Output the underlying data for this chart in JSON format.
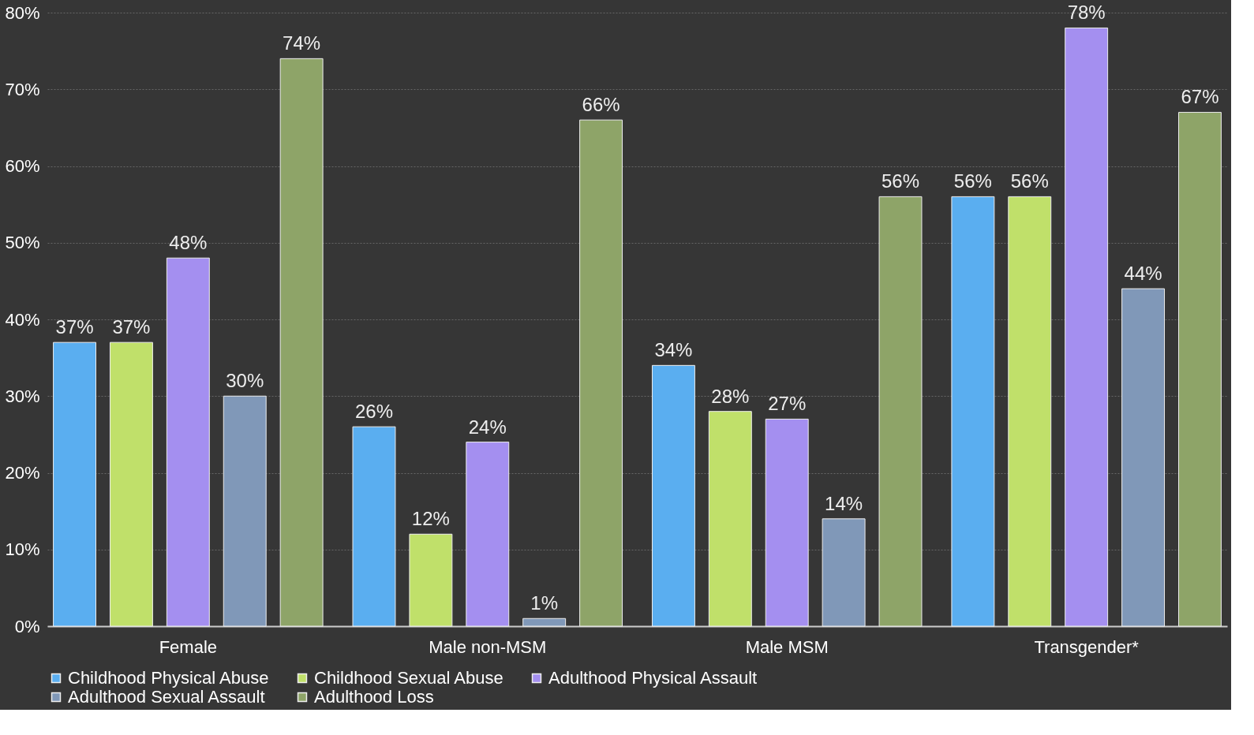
{
  "chart_data": {
    "type": "bar",
    "categories": [
      "Female",
      "Male non-MSM",
      "Male MSM",
      "Transgender*"
    ],
    "series": [
      {
        "name": "Childhood Physical Abuse",
        "color": "#5aaef0",
        "values": [
          37,
          26,
          34,
          56
        ],
        "value_labels": [
          "37%",
          "26%",
          "34%",
          "56%"
        ]
      },
      {
        "name": "Childhood Sexual Abuse",
        "color": "#c0e06a",
        "values": [
          37,
          12,
          28,
          56
        ],
        "value_labels": [
          "37%",
          "12%",
          "28%",
          "56%"
        ]
      },
      {
        "name": "Adulthood Physical Assault",
        "color": "#a48ff0",
        "values": [
          48,
          24,
          27,
          78
        ],
        "value_labels": [
          "48%",
          "24%",
          "27%",
          "78%"
        ]
      },
      {
        "name": "Adulthood Sexual Assault",
        "color": "#8098b8",
        "values": [
          30,
          1,
          14,
          44
        ],
        "value_labels": [
          "30%",
          "1%",
          "14%",
          "44%"
        ]
      },
      {
        "name": "Adulthood Loss",
        "color": "#8ea468",
        "values": [
          74,
          66,
          56,
          67
        ],
        "value_labels": [
          "74%",
          "66%",
          "56%",
          "67%"
        ]
      }
    ],
    "ylim": [
      0,
      80
    ],
    "yticks": [
      {
        "value": 0,
        "label": "0%"
      },
      {
        "value": 10,
        "label": "10%"
      },
      {
        "value": 20,
        "label": "20%"
      },
      {
        "value": 30,
        "label": "30%"
      },
      {
        "value": 40,
        "label": "40%"
      },
      {
        "value": 50,
        "label": "50%"
      },
      {
        "value": 60,
        "label": "60%"
      },
      {
        "value": 70,
        "label": "70%"
      },
      {
        "value": 80,
        "label": "80%"
      }
    ],
    "grid": "y",
    "legend": "bottom"
  }
}
